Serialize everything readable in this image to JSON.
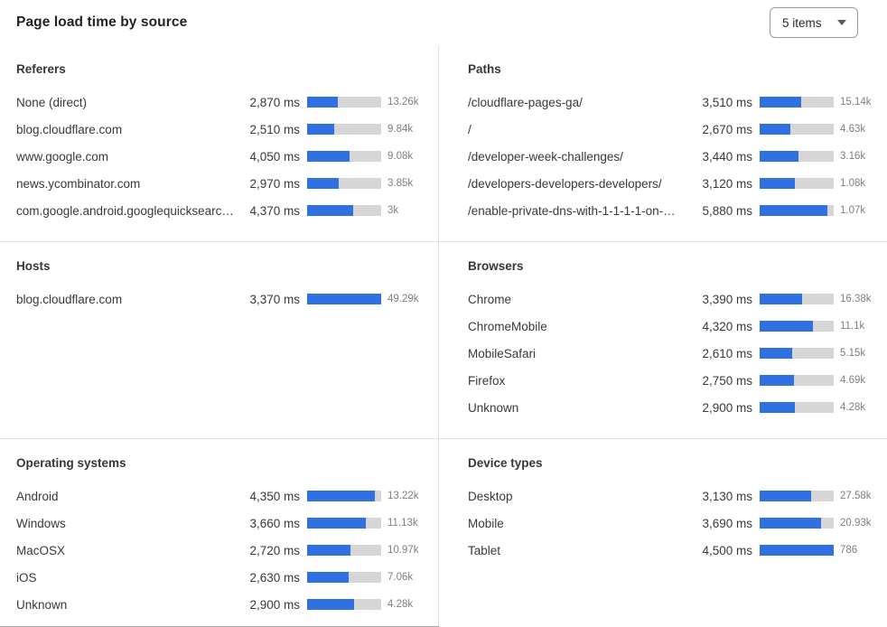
{
  "header": {
    "title": "Page load time by source",
    "items_select": {
      "value": "5 items"
    }
  },
  "colors": {
    "bar_fill": "#2f70e3",
    "bar_track": "#d6d6d6",
    "divider": "#e2e2e2",
    "count_text": "#7c7f84"
  },
  "chart_data": [
    {
      "type": "bar",
      "orientation": "horizontal",
      "title": "Referers",
      "column": "left",
      "rows": [
        {
          "label": "None (direct)",
          "ms": 2870,
          "ms_display": "2,870 ms",
          "count_display": "13.26k",
          "bar_pct": 41
        },
        {
          "label": "blog.cloudflare.com",
          "ms": 2510,
          "ms_display": "2,510 ms",
          "count_display": "9.84k",
          "bar_pct": 36
        },
        {
          "label": "www.google.com",
          "ms": 4050,
          "ms_display": "4,050 ms",
          "count_display": "9.08k",
          "bar_pct": 57
        },
        {
          "label": "news.ycombinator.com",
          "ms": 2970,
          "ms_display": "2,970 ms",
          "count_display": "3.85k",
          "bar_pct": 43
        },
        {
          "label": "com.google.android.googlequicksearc…",
          "ms": 4370,
          "ms_display": "4,370 ms",
          "count_display": "3k",
          "bar_pct": 62
        }
      ]
    },
    {
      "type": "bar",
      "orientation": "horizontal",
      "title": "Paths",
      "column": "right",
      "rows": [
        {
          "label": "/cloudflare-pages-ga/",
          "ms": 3510,
          "ms_display": "3,510 ms",
          "count_display": "15.14k",
          "bar_pct": 56
        },
        {
          "label": "/",
          "ms": 2670,
          "ms_display": "2,670 ms",
          "count_display": "4.63k",
          "bar_pct": 41
        },
        {
          "label": "/developer-week-challenges/",
          "ms": 3440,
          "ms_display": "3,440 ms",
          "count_display": "3.16k",
          "bar_pct": 53
        },
        {
          "label": "/developers-developers-developers/",
          "ms": 3120,
          "ms_display": "3,120 ms",
          "count_display": "1.08k",
          "bar_pct": 48
        },
        {
          "label": "/enable-private-dns-with-1-1-1-1-on-…",
          "ms": 5880,
          "ms_display": "5,880 ms",
          "count_display": "1.07k",
          "bar_pct": 91
        }
      ]
    },
    {
      "type": "bar",
      "orientation": "horizontal",
      "title": "Hosts",
      "column": "left",
      "rows": [
        {
          "label": "blog.cloudflare.com",
          "ms": 3370,
          "ms_display": "3,370 ms",
          "count_display": "49.29k",
          "bar_pct": 100
        }
      ]
    },
    {
      "type": "bar",
      "orientation": "horizontal",
      "title": "Browsers",
      "column": "right",
      "rows": [
        {
          "label": "Chrome",
          "ms": 3390,
          "ms_display": "3,390 ms",
          "count_display": "16.38k",
          "bar_pct": 57
        },
        {
          "label": "ChromeMobile",
          "ms": 4320,
          "ms_display": "4,320 ms",
          "count_display": "11.1k",
          "bar_pct": 72
        },
        {
          "label": "MobileSafari",
          "ms": 2610,
          "ms_display": "2,610 ms",
          "count_display": "5.15k",
          "bar_pct": 44
        },
        {
          "label": "Firefox",
          "ms": 2750,
          "ms_display": "2,750 ms",
          "count_display": "4.69k",
          "bar_pct": 46
        },
        {
          "label": "Unknown",
          "ms": 2900,
          "ms_display": "2,900 ms",
          "count_display": "4.28k",
          "bar_pct": 48
        }
      ]
    },
    {
      "type": "bar",
      "orientation": "horizontal",
      "title": "Operating systems",
      "column": "left",
      "rows": [
        {
          "label": "Android",
          "ms": 4350,
          "ms_display": "4,350 ms",
          "count_display": "13.22k",
          "bar_pct": 91
        },
        {
          "label": "Windows",
          "ms": 3660,
          "ms_display": "3,660 ms",
          "count_display": "11.13k",
          "bar_pct": 79
        },
        {
          "label": "MacOSX",
          "ms": 2720,
          "ms_display": "2,720 ms",
          "count_display": "10.97k",
          "bar_pct": 59
        },
        {
          "label": "iOS",
          "ms": 2630,
          "ms_display": "2,630 ms",
          "count_display": "7.06k",
          "bar_pct": 56
        },
        {
          "label": "Unknown",
          "ms": 2900,
          "ms_display": "2,900 ms",
          "count_display": "4.28k",
          "bar_pct": 63
        }
      ]
    },
    {
      "type": "bar",
      "orientation": "horizontal",
      "title": "Device types",
      "column": "right",
      "rows": [
        {
          "label": "Desktop",
          "ms": 3130,
          "ms_display": "3,130 ms",
          "count_display": "27.58k",
          "bar_pct": 70
        },
        {
          "label": "Mobile",
          "ms": 3690,
          "ms_display": "3,690 ms",
          "count_display": "20.93k",
          "bar_pct": 83
        },
        {
          "label": "Tablet",
          "ms": 4500,
          "ms_display": "4,500 ms",
          "count_display": "786",
          "bar_pct": 100
        }
      ]
    }
  ]
}
